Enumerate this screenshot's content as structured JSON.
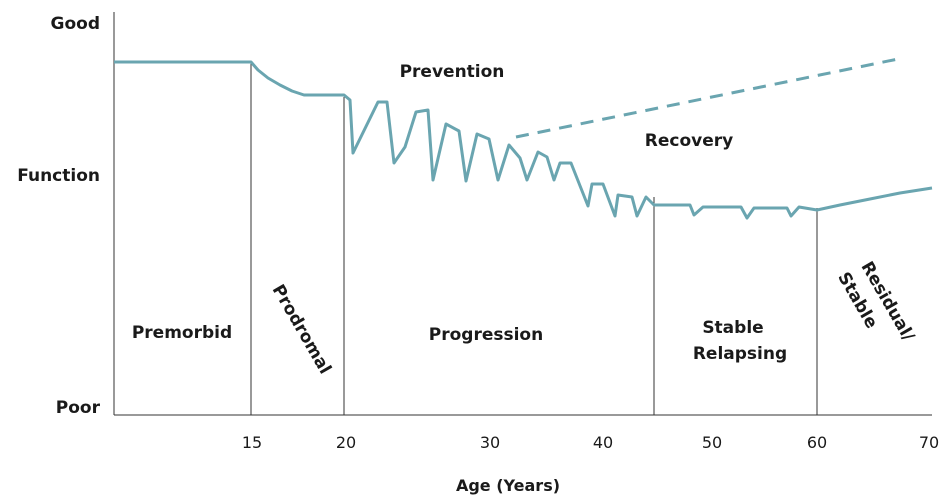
{
  "chart_data": {
    "type": "line",
    "y_labels": {
      "top": "Good",
      "middle": "Function",
      "bottom": "Poor"
    },
    "x_ticks": [
      "15",
      "20",
      "30",
      "40",
      "50",
      "60",
      "70"
    ],
    "xlabel": "Age (Years)",
    "phases": {
      "premorbid": "Premorbid",
      "prodromal": "Prodromal",
      "progression": "Progression",
      "stable_relapsing_1": "Stable",
      "stable_relapsing_2": "Relapsing",
      "residual_1": "Residual/",
      "residual_2": "Stable"
    },
    "annotations": {
      "prevention": "Prevention",
      "recovery": "Recovery"
    },
    "line_color": "#6aa5b0"
  }
}
